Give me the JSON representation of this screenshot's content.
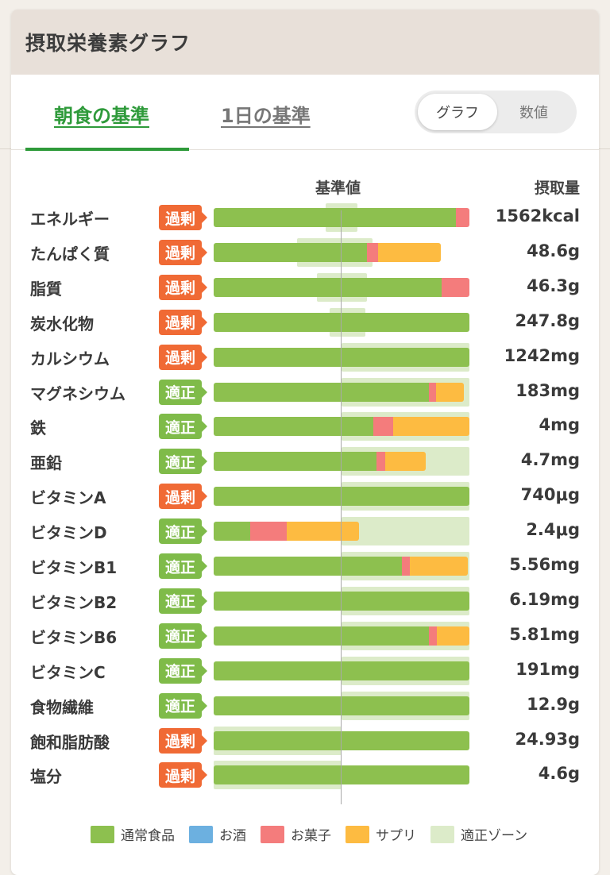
{
  "header": {
    "title": "摂取栄養素グラフ"
  },
  "tabs": [
    {
      "label": "朝食の基準",
      "active": true
    },
    {
      "label": "1日の基準",
      "active": false
    }
  ],
  "view_toggle": {
    "graph_label": "グラフ",
    "value_label": "数値",
    "selected": "グラフ"
  },
  "columns": {
    "reference": "基準値",
    "intake": "摂取量"
  },
  "colors": {
    "normal_food": "#8dc04f",
    "alcohol": "#6cb0e0",
    "snack": "#f47c7c",
    "supplement": "#fdbb41",
    "proper_zone": "#dcebc9",
    "over_badge": "#f06a35",
    "ok_badge": "#7fbb49",
    "accent": "#2e9a3a"
  },
  "legend": [
    {
      "label": "通常食品",
      "color": "#8dc04f"
    },
    {
      "label": "お酒",
      "color": "#6cb0e0"
    },
    {
      "label": "お菓子",
      "color": "#f47c7c"
    },
    {
      "label": "サプリ",
      "color": "#fdbb41"
    },
    {
      "label": "適正ゾーン",
      "color": "#dcebc9"
    }
  ],
  "chart_data": {
    "type": "bar",
    "orientation": "horizontal",
    "stacked": true,
    "reference_value": 50,
    "xlim": [
      0,
      100
    ],
    "series_names": [
      "通常食品",
      "お菓子",
      "サプリ"
    ],
    "categories": [
      "エネルギー",
      "たんぱく質",
      "脂質",
      "炭水化物",
      "カルシウム",
      "マグネシウム",
      "鉄",
      "亜鉛",
      "ビタミンA",
      "ビタミンD",
      "ビタミンB1",
      "ビタミンB2",
      "ビタミンB6",
      "ビタミンC",
      "食物繊維",
      "飽和脂肪酸",
      "塩分"
    ],
    "rows": [
      {
        "name": "エネルギー",
        "status": "過剰",
        "status_type": "over",
        "amount": "1562kcal",
        "normal": 94.7,
        "snack": 5.3,
        "supplement": 0,
        "zone": [
          43.8,
          56.3
        ]
      },
      {
        "name": "たんぱく質",
        "status": "過剰",
        "status_type": "over",
        "amount": "48.6g",
        "normal": 59.9,
        "snack": 4.3,
        "supplement": 24.5,
        "zone": [
          32.6,
          62.1
        ]
      },
      {
        "name": "脂質",
        "status": "過剰",
        "status_type": "over",
        "amount": "46.3g",
        "normal": 89.1,
        "snack": 10.9,
        "supplement": 0,
        "zone": [
          40.4,
          59.9
        ]
      },
      {
        "name": "炭水化物",
        "status": "過剰",
        "status_type": "over",
        "amount": "247.8g",
        "normal": 100,
        "snack": 0,
        "supplement": 0,
        "zone": [
          45.3,
          59.3
        ]
      },
      {
        "name": "カルシウム",
        "status": "過剰",
        "status_type": "over",
        "amount": "1242mg",
        "normal": 100,
        "snack": 0,
        "supplement": 0,
        "zone": [
          50,
          100
        ]
      },
      {
        "name": "マグネシウム",
        "status": "適正",
        "status_type": "ok",
        "amount": "183mg",
        "normal": 84.2,
        "snack": 2.8,
        "supplement": 10.9,
        "zone": [
          50,
          100
        ]
      },
      {
        "name": "鉄",
        "status": "適正",
        "status_type": "ok",
        "amount": "4mg",
        "normal": 62.4,
        "snack": 7.8,
        "supplement": 29.8,
        "zone": [
          50,
          100
        ]
      },
      {
        "name": "亜鉛",
        "status": "適正",
        "status_type": "ok",
        "amount": "4.7mg",
        "normal": 63.7,
        "snack": 3.4,
        "supplement": 15.8,
        "zone": [
          50,
          100
        ]
      },
      {
        "name": "ビタミンA",
        "status": "過剰",
        "status_type": "over",
        "amount": "740μg",
        "normal": 100,
        "snack": 0,
        "supplement": 0,
        "zone": [
          50,
          100
        ]
      },
      {
        "name": "ビタミンD",
        "status": "適正",
        "status_type": "ok",
        "amount": "2.4μg",
        "normal": 14.3,
        "snack": 14.3,
        "supplement": 28.3,
        "zone": [
          50,
          100
        ]
      },
      {
        "name": "ビタミンB1",
        "status": "適正",
        "status_type": "ok",
        "amount": "5.56mg",
        "normal": 73.6,
        "snack": 3.1,
        "supplement": 22.7,
        "zone": [
          50,
          100
        ]
      },
      {
        "name": "ビタミンB2",
        "status": "適正",
        "status_type": "ok",
        "amount": "6.19mg",
        "normal": 100,
        "snack": 0,
        "supplement": 0,
        "zone": [
          50,
          100
        ]
      },
      {
        "name": "ビタミンB6",
        "status": "適正",
        "status_type": "ok",
        "amount": "5.81mg",
        "normal": 84.2,
        "snack": 3.1,
        "supplement": 12.7,
        "zone": [
          50,
          100
        ]
      },
      {
        "name": "ビタミンC",
        "status": "適正",
        "status_type": "ok",
        "amount": "191mg",
        "normal": 100,
        "snack": 0,
        "supplement": 0,
        "zone": [
          50,
          100
        ]
      },
      {
        "name": "食物繊維",
        "status": "適正",
        "status_type": "ok",
        "amount": "12.9g",
        "normal": 100,
        "snack": 0,
        "supplement": 0,
        "zone": [
          50,
          100
        ]
      },
      {
        "name": "飽和脂肪酸",
        "status": "過剰",
        "status_type": "over",
        "amount": "24.93g",
        "normal": 100,
        "snack": 0,
        "supplement": 0,
        "zone": [
          0,
          50
        ]
      },
      {
        "name": "塩分",
        "status": "過剰",
        "status_type": "over",
        "amount": "4.6g",
        "normal": 100,
        "snack": 0,
        "supplement": 0,
        "zone": [
          0,
          50
        ]
      }
    ]
  }
}
